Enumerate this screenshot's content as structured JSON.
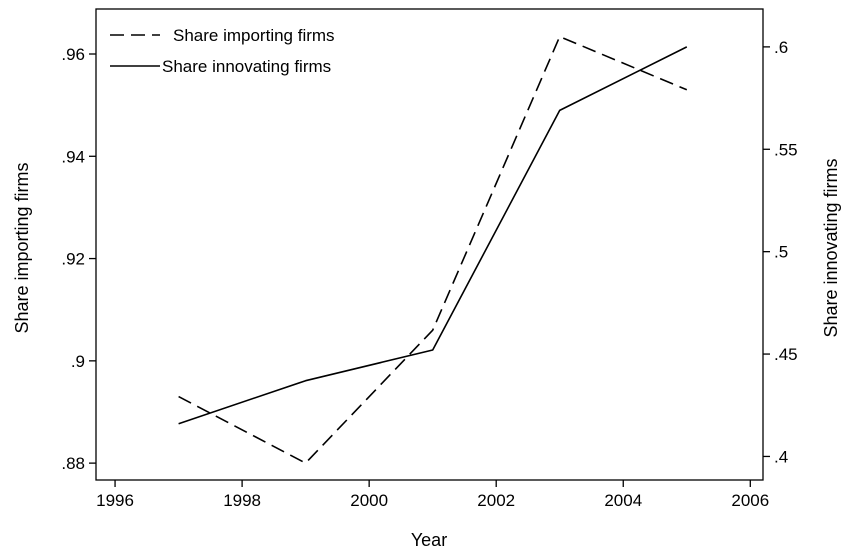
{
  "chart_data": {
    "type": "line",
    "title": "",
    "xlabel": "Year",
    "ylabel_left": "Share importing firms",
    "ylabel_right": "Share innovating firms",
    "xlim": [
      1995.7,
      2006.2
    ],
    "ylim_left": [
      0.8767,
      0.9688
    ],
    "ylim_right": [
      0.3885,
      0.6185
    ],
    "x_ticks": [
      1996,
      1998,
      2000,
      2002,
      2004,
      2006
    ],
    "x_tick_labels": [
      "1996",
      "1998",
      "2000",
      "2002",
      "2004",
      "2006"
    ],
    "y_left_ticks": [
      0.88,
      0.9,
      0.92,
      0.94,
      0.96
    ],
    "y_left_tick_labels": [
      ".88",
      ".9",
      ".92",
      ".94",
      ".96"
    ],
    "y_right_ticks": [
      0.4,
      0.45,
      0.5,
      0.55,
      0.6
    ],
    "y_right_tick_labels": [
      ".4",
      ".45",
      ".5",
      ".55",
      ".6"
    ],
    "grid": false,
    "legend_position": "top-left",
    "series": [
      {
        "name": "Share importing firms",
        "axis": "left",
        "style": "dashed",
        "color": "#000000",
        "x": [
          1997,
          1999,
          2001,
          2003,
          2005
        ],
        "values": [
          0.893,
          0.88,
          0.906,
          0.9634,
          0.953
        ]
      },
      {
        "name": "Share innovating firms",
        "axis": "right",
        "style": "solid",
        "color": "#000000",
        "x": [
          1997,
          1999,
          2001,
          2003,
          2005
        ],
        "values": [
          0.416,
          0.437,
          0.452,
          0.569,
          0.6
        ]
      }
    ]
  }
}
